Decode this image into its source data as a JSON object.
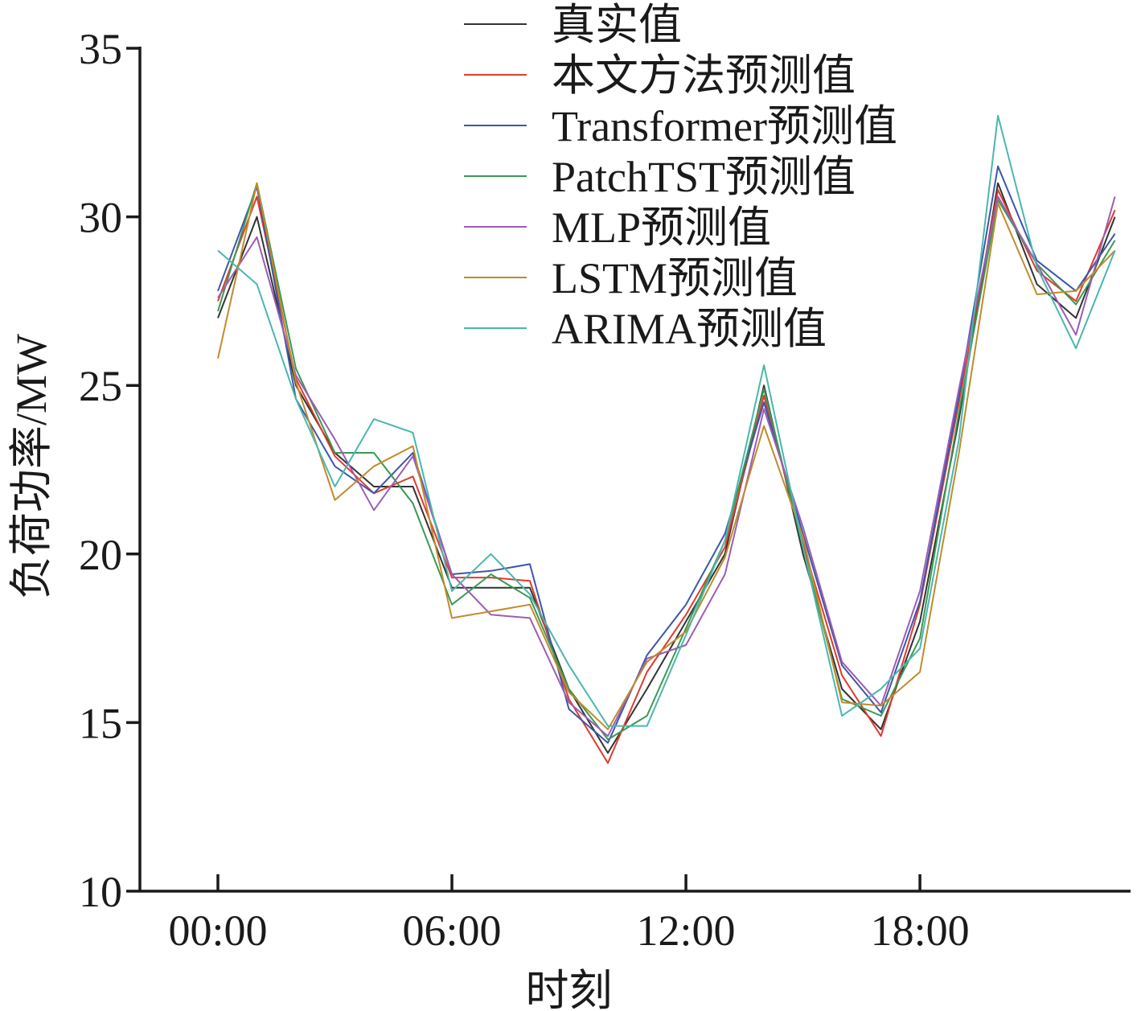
{
  "chart_data": {
    "type": "line",
    "xlabel": "时刻",
    "ylabel": "负荷功率/MW",
    "ylim": [
      10,
      35
    ],
    "yticks": [
      10,
      15,
      20,
      25,
      30,
      35
    ],
    "xlim": [
      -2,
      23.4
    ],
    "xticks": [
      0,
      6,
      12,
      18
    ],
    "xtick_labels": [
      "00:00",
      "06:00",
      "12:00",
      "18:00"
    ],
    "x": [
      0,
      1,
      2,
      3,
      4,
      5,
      6,
      7,
      8,
      9,
      10,
      11,
      12,
      13,
      14,
      15,
      16,
      17,
      18,
      19,
      20,
      21,
      22,
      23
    ],
    "grid": false,
    "legend_position": "top-center",
    "series": [
      {
        "name": "真实值",
        "color": "#333333",
        "values": [
          27.0,
          30.0,
          25.0,
          23.0,
          22.0,
          22.0,
          19.0,
          19.0,
          19.0,
          16.0,
          14.1,
          16.0,
          18.0,
          20.0,
          25.0,
          20.0,
          16.0,
          14.8,
          18.0,
          24.0,
          31.0,
          28.0,
          27.0,
          30.0
        ]
      },
      {
        "name": "本文方法预测值",
        "color": "#e03a2f",
        "values": [
          27.5,
          30.6,
          25.2,
          22.9,
          21.8,
          22.3,
          19.3,
          19.3,
          19.2,
          15.7,
          13.8,
          16.5,
          18.2,
          20.2,
          24.7,
          20.3,
          16.4,
          14.6,
          18.5,
          24.5,
          30.8,
          28.4,
          27.5,
          30.2
        ]
      },
      {
        "name": "Transformer预测值",
        "color": "#3b57a8",
        "values": [
          27.8,
          30.9,
          24.6,
          22.6,
          21.8,
          23.0,
          19.4,
          19.5,
          19.7,
          15.4,
          14.4,
          17.0,
          18.5,
          20.6,
          24.5,
          20.6,
          16.7,
          15.3,
          18.6,
          24.7,
          31.5,
          28.7,
          27.8,
          29.5
        ]
      },
      {
        "name": "PatchTST预测值",
        "color": "#3a9a52",
        "values": [
          27.2,
          31.0,
          25.5,
          23.0,
          23.0,
          21.5,
          18.5,
          19.4,
          18.7,
          16.0,
          14.5,
          15.2,
          17.8,
          20.4,
          24.9,
          20.2,
          15.7,
          15.2,
          17.5,
          24.2,
          30.5,
          28.6,
          27.4,
          29.3
        ]
      },
      {
        "name": "MLP预测值",
        "color": "#9b5db5",
        "values": [
          27.6,
          29.4,
          25.3,
          23.4,
          21.3,
          22.9,
          19.4,
          18.2,
          18.1,
          15.6,
          14.6,
          16.9,
          17.3,
          19.4,
          24.3,
          20.8,
          16.8,
          15.5,
          18.9,
          24.9,
          30.6,
          28.6,
          26.5,
          30.6
        ]
      },
      {
        "name": "LSTM预测值",
        "color": "#c08b2c",
        "values": [
          25.8,
          31.0,
          25.1,
          21.6,
          22.6,
          23.2,
          18.1,
          18.3,
          18.5,
          15.9,
          14.8,
          16.8,
          17.7,
          19.9,
          23.8,
          20.5,
          15.6,
          15.5,
          16.5,
          23.0,
          30.4,
          27.7,
          27.8,
          29.0
        ]
      },
      {
        "name": "ARIMA预测值",
        "color": "#4ab7ad",
        "values": [
          29.0,
          28.0,
          24.6,
          22.0,
          24.0,
          23.6,
          18.9,
          20.0,
          18.8,
          16.7,
          14.9,
          14.9,
          17.6,
          20.4,
          25.6,
          20.2,
          15.2,
          16.0,
          17.2,
          23.4,
          33.0,
          28.5,
          26.1,
          29.0
        ]
      }
    ]
  }
}
